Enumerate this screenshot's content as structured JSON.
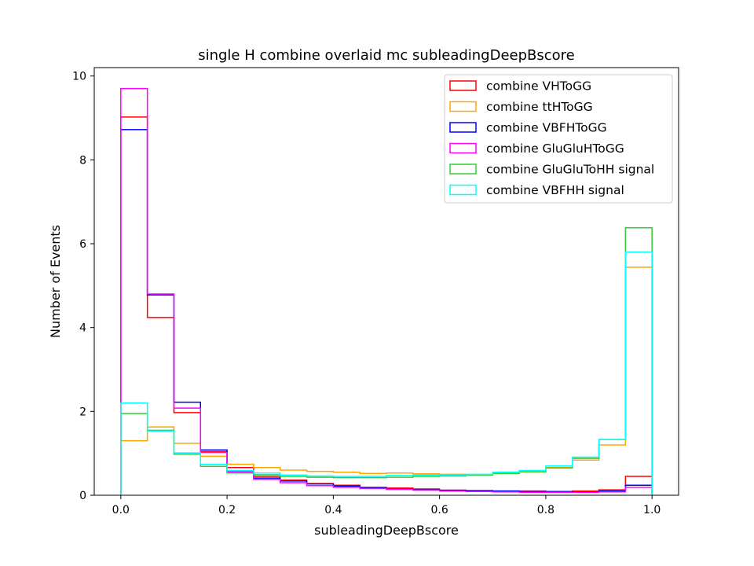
{
  "chart_data": {
    "type": "histogram",
    "title": "single H combine overlaid mc subleadingDeepBscore",
    "xlabel": "subleadingDeepBscore",
    "ylabel": "Number of Events",
    "xlim": [
      -0.05,
      1.05
    ],
    "ylim": [
      0,
      10.2
    ],
    "x_ticks": [
      "0.0",
      "0.2",
      "0.4",
      "0.6",
      "0.8",
      "1.0"
    ],
    "y_ticks": [
      "0",
      "2",
      "4",
      "6",
      "8",
      "10"
    ],
    "x_tick_values": [
      0.0,
      0.2,
      0.4,
      0.6,
      0.8,
      1.0
    ],
    "y_tick_values": [
      0,
      2,
      4,
      6,
      8,
      10
    ],
    "bin_edges": [
      0.0,
      0.05,
      0.1,
      0.15,
      0.2,
      0.25,
      0.3,
      0.35,
      0.4,
      0.45,
      0.5,
      0.55,
      0.6,
      0.65,
      0.7,
      0.75,
      0.8,
      0.85,
      0.9,
      0.95,
      1.0
    ],
    "legend_position": "top-right",
    "grid": false,
    "series": [
      {
        "name": "combine VHToGG",
        "color": "#ff0000",
        "values": [
          9.02,
          4.24,
          1.97,
          1.04,
          0.66,
          0.45,
          0.36,
          0.28,
          0.24,
          0.19,
          0.17,
          0.15,
          0.12,
          0.11,
          0.1,
          0.1,
          0.09,
          0.1,
          0.13,
          0.45
        ]
      },
      {
        "name": "combine ttHToGG",
        "color": "#ffa500",
        "values": [
          1.3,
          1.63,
          1.24,
          0.93,
          0.74,
          0.66,
          0.6,
          0.57,
          0.55,
          0.52,
          0.53,
          0.51,
          0.5,
          0.49,
          0.52,
          0.56,
          0.66,
          0.84,
          1.2,
          5.44
        ]
      },
      {
        "name": "combine VBFHToGG",
        "color": "#0000ff",
        "values": [
          8.72,
          4.78,
          2.22,
          1.08,
          0.56,
          0.41,
          0.34,
          0.27,
          0.22,
          0.17,
          0.15,
          0.13,
          0.12,
          0.11,
          0.1,
          0.09,
          0.09,
          0.08,
          0.1,
          0.24
        ]
      },
      {
        "name": "combine GluGluHToGG",
        "color": "#ff00ff",
        "values": [
          9.7,
          4.8,
          2.08,
          1.02,
          0.56,
          0.38,
          0.3,
          0.23,
          0.19,
          0.16,
          0.14,
          0.12,
          0.1,
          0.09,
          0.08,
          0.07,
          0.07,
          0.07,
          0.08,
          0.19
        ]
      },
      {
        "name": "combine GluGluToHH signal",
        "color": "#32cd32",
        "values": [
          1.95,
          1.55,
          0.98,
          0.69,
          0.53,
          0.49,
          0.45,
          0.43,
          0.42,
          0.42,
          0.43,
          0.45,
          0.46,
          0.48,
          0.52,
          0.56,
          0.65,
          0.88,
          1.33,
          6.38
        ]
      },
      {
        "name": "combine VBFHH signal",
        "color": "#00ffff",
        "values": [
          2.2,
          1.53,
          1.01,
          0.74,
          0.59,
          0.53,
          0.48,
          0.46,
          0.45,
          0.45,
          0.47,
          0.48,
          0.48,
          0.5,
          0.55,
          0.59,
          0.7,
          0.91,
          1.33,
          5.8
        ]
      }
    ]
  }
}
